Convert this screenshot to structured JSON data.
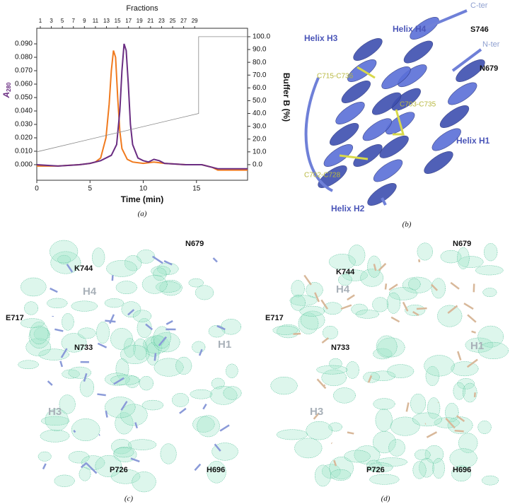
{
  "chart_data": {
    "type": "line",
    "x2label": "Fractions",
    "xlabel": "Time (min)",
    "ylabel": "A",
    "ylabel_sub": "280",
    "y2label": "Buffer B (%)",
    "caption": "(a)",
    "xlim": [
      0,
      19.8
    ],
    "xticks": [
      0,
      5,
      10,
      15
    ],
    "x2lim": [
      0.36,
      38.6
    ],
    "x2ticks": [
      1,
      3,
      5,
      7,
      9,
      11,
      13,
      15,
      17,
      19,
      21,
      23,
      25,
      27,
      29
    ],
    "ylim": [
      -0.0116,
      0.1016
    ],
    "yticks": [
      {
        "value": 0,
        "label": "0.000"
      },
      {
        "value": 0.01,
        "label": "0.010"
      },
      {
        "value": 0.02,
        "label": "0.020"
      },
      {
        "value": 0.03,
        "label": "0.030"
      },
      {
        "value": 0.04,
        "label": "0.040"
      },
      {
        "value": 0.05,
        "label": "0.050"
      },
      {
        "value": 0.06,
        "label": "0.060"
      },
      {
        "value": 0.07,
        "label": "0.070"
      },
      {
        "value": 0.08,
        "label": "0.080"
      },
      {
        "value": 0.09,
        "label": "0.090"
      }
    ],
    "y2lim": [
      -12.2,
      106.6
    ],
    "y2ticks": [
      {
        "value": 0,
        "label": "0.0"
      },
      {
        "value": 10,
        "label": "10.0"
      },
      {
        "value": 20,
        "label": "20.0"
      },
      {
        "value": 30,
        "label": "30.0"
      },
      {
        "value": 40,
        "label": "40.0"
      },
      {
        "value": 50,
        "label": "50.0"
      },
      {
        "value": 60,
        "label": "60.0"
      },
      {
        "value": 70,
        "label": "70.0"
      },
      {
        "value": 80,
        "label": "80.0"
      },
      {
        "value": 90,
        "label": "90.0"
      },
      {
        "value": 100,
        "label": "100.0"
      }
    ],
    "ycolor": "#6a2d82",
    "series": [
      {
        "color": "#f07a1e",
        "x": [
          0,
          2,
          3,
          4,
          5,
          5.5,
          6,
          6.5,
          6.8,
          7,
          7.2,
          7.4,
          7.6,
          7.8,
          8,
          8.5,
          9,
          10,
          11,
          12,
          14,
          15.5,
          16.5,
          17,
          19.8
        ],
        "values": [
          -0.001,
          -0.001,
          -0.0005,
          0,
          0.001,
          0.002,
          0.005,
          0.02,
          0.045,
          0.07,
          0.085,
          0.08,
          0.05,
          0.025,
          0.012,
          0.004,
          0.002,
          0.001,
          0.002,
          0.001,
          0,
          0,
          -0.002,
          -0.004,
          -0.004
        ]
      },
      {
        "color": "#6a2d82",
        "x": [
          0,
          2,
          4,
          5,
          6,
          7,
          7.5,
          7.8,
          8,
          8.2,
          8.4,
          8.6,
          8.8,
          9,
          9.5,
          10,
          10.5,
          11,
          11.5,
          12,
          14,
          15.5,
          16.5,
          17,
          19.8
        ],
        "values": [
          0,
          -0.001,
          0,
          0.001,
          0.003,
          0.007,
          0.015,
          0.04,
          0.07,
          0.09,
          0.085,
          0.06,
          0.03,
          0.015,
          0.005,
          0.003,
          0.002,
          0.004,
          0.003,
          0.001,
          0,
          0,
          -0.002,
          -0.003,
          -0.003
        ]
      },
      {
        "color": "#888888",
        "axis": "y2",
        "x": [
          0,
          15.2,
          15.2,
          19.8
        ],
        "values": [
          10,
          40,
          100,
          100
        ]
      }
    ]
  },
  "panel_b": {
    "caption": "(b)",
    "labels": [
      "Helix H4",
      "C-ter",
      "S746",
      "Helix H3",
      "N-ter",
      "N679",
      "C715-C736",
      "C703-C735",
      "Helix H1",
      "C702-C728",
      "Helix H2"
    ]
  },
  "panel_c": {
    "caption": "(c)",
    "labels": [
      "N679",
      "K744",
      "H4",
      "E717",
      "N733",
      "H1",
      "H3",
      "P726",
      "H696"
    ]
  },
  "panel_d": {
    "caption": "(d)",
    "labels": [
      "N679",
      "K744",
      "H4",
      "E717",
      "N733",
      "H1",
      "H3",
      "P726",
      "H696"
    ]
  }
}
